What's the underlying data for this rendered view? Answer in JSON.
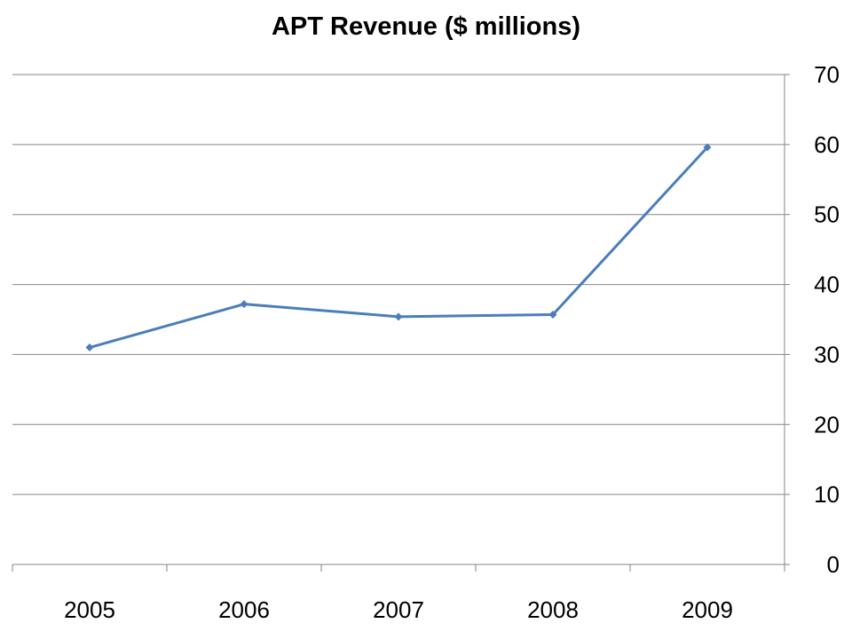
{
  "chart_data": {
    "type": "line",
    "title": "APT Revenue ($ millions)",
    "xlabel": "",
    "ylabel": "",
    "categories": [
      "2005",
      "2006",
      "2007",
      "2008",
      "2009"
    ],
    "series": [
      {
        "values": [
          31.0,
          37.2,
          35.4,
          35.7,
          59.6
        ]
      }
    ],
    "ylim": [
      0,
      70
    ],
    "yticks": [
      0,
      10,
      20,
      30,
      40,
      50,
      60,
      70
    ],
    "y_axis_side": "right",
    "grid": true,
    "legend": "none",
    "colors": {
      "line": "#4a7ebb",
      "grid": "#868686",
      "axis": "#868686"
    },
    "marker": "diamond"
  }
}
